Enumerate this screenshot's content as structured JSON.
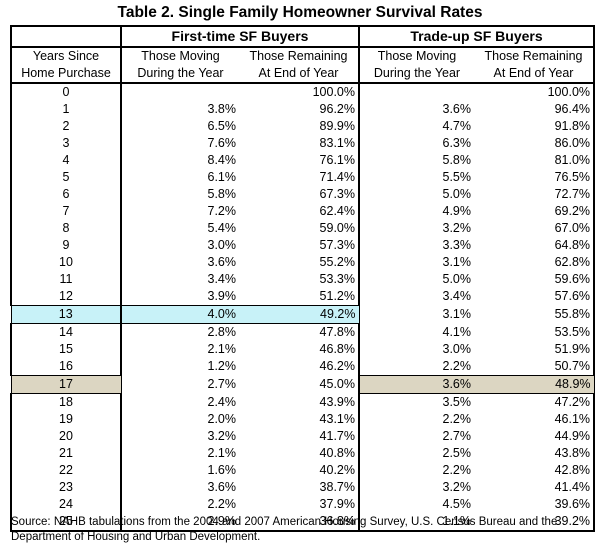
{
  "title": "Table 2.  Single Family Homeowner Survival Rates",
  "groups": {
    "first": "First-time SF Buyers",
    "trade": "Trade-up SF Buyers"
  },
  "col_headers": {
    "years": [
      "Years Since",
      "Home Purchase"
    ],
    "moving": [
      "Those Moving",
      "During the Year"
    ],
    "remaining": [
      "Those Remaining",
      "At End of Year"
    ]
  },
  "rows": [
    {
      "y": "0",
      "fm": "",
      "fr": "100.0%",
      "tm": "",
      "tr": "100.0%"
    },
    {
      "y": "1",
      "fm": "3.8%",
      "fr": "96.2%",
      "tm": "3.6%",
      "tr": "96.4%"
    },
    {
      "y": "2",
      "fm": "6.5%",
      "fr": "89.9%",
      "tm": "4.7%",
      "tr": "91.8%"
    },
    {
      "y": "3",
      "fm": "7.6%",
      "fr": "83.1%",
      "tm": "6.3%",
      "tr": "86.0%"
    },
    {
      "y": "4",
      "fm": "8.4%",
      "fr": "76.1%",
      "tm": "5.8%",
      "tr": "81.0%"
    },
    {
      "y": "5",
      "fm": "6.1%",
      "fr": "71.4%",
      "tm": "5.5%",
      "tr": "76.5%"
    },
    {
      "y": "6",
      "fm": "5.8%",
      "fr": "67.3%",
      "tm": "5.0%",
      "tr": "72.7%"
    },
    {
      "y": "7",
      "fm": "7.2%",
      "fr": "62.4%",
      "tm": "4.9%",
      "tr": "69.2%"
    },
    {
      "y": "8",
      "fm": "5.4%",
      "fr": "59.0%",
      "tm": "3.2%",
      "tr": "67.0%"
    },
    {
      "y": "9",
      "fm": "3.0%",
      "fr": "57.3%",
      "tm": "3.3%",
      "tr": "64.8%"
    },
    {
      "y": "10",
      "fm": "3.6%",
      "fr": "55.2%",
      "tm": "3.1%",
      "tr": "62.8%"
    },
    {
      "y": "11",
      "fm": "3.4%",
      "fr": "53.3%",
      "tm": "5.0%",
      "tr": "59.6%"
    },
    {
      "y": "12",
      "fm": "3.9%",
      "fr": "51.2%",
      "tm": "3.4%",
      "tr": "57.6%"
    },
    {
      "y": "13",
      "fm": "4.0%",
      "fr": "49.2%",
      "tm": "3.1%",
      "tr": "55.8%",
      "hl": "first"
    },
    {
      "y": "14",
      "fm": "2.8%",
      "fr": "47.8%",
      "tm": "4.1%",
      "tr": "53.5%"
    },
    {
      "y": "15",
      "fm": "2.1%",
      "fr": "46.8%",
      "tm": "3.0%",
      "tr": "51.9%"
    },
    {
      "y": "16",
      "fm": "1.2%",
      "fr": "46.2%",
      "tm": "2.2%",
      "tr": "50.7%"
    },
    {
      "y": "17",
      "fm": "2.7%",
      "fr": "45.0%",
      "tm": "3.6%",
      "tr": "48.9%",
      "hl": "trade"
    },
    {
      "y": "18",
      "fm": "2.4%",
      "fr": "43.9%",
      "tm": "3.5%",
      "tr": "47.2%"
    },
    {
      "y": "19",
      "fm": "2.0%",
      "fr": "43.1%",
      "tm": "2.2%",
      "tr": "46.1%"
    },
    {
      "y": "20",
      "fm": "3.2%",
      "fr": "41.7%",
      "tm": "2.7%",
      "tr": "44.9%"
    },
    {
      "y": "21",
      "fm": "2.1%",
      "fr": "40.8%",
      "tm": "2.5%",
      "tr": "43.8%"
    },
    {
      "y": "22",
      "fm": "1.6%",
      "fr": "40.2%",
      "tm": "2.2%",
      "tr": "42.8%"
    },
    {
      "y": "23",
      "fm": "3.6%",
      "fr": "38.7%",
      "tm": "3.2%",
      "tr": "41.4%"
    },
    {
      "y": "24",
      "fm": "2.2%",
      "fr": "37.9%",
      "tm": "4.5%",
      "tr": "39.6%"
    },
    {
      "y": "25",
      "fm": "2.9%",
      "fr": "36.8%",
      "tm": "1.1%",
      "tr": "39.2%"
    }
  ],
  "highlight_colors": {
    "first": "#c8f2f8",
    "trade": "#dcd6c2"
  },
  "source": "Source: NAHB tabulations from the 2004 and 2007 American Housing Survey, U.S. Census Bureau and the Department of Housing and Urban Development."
}
